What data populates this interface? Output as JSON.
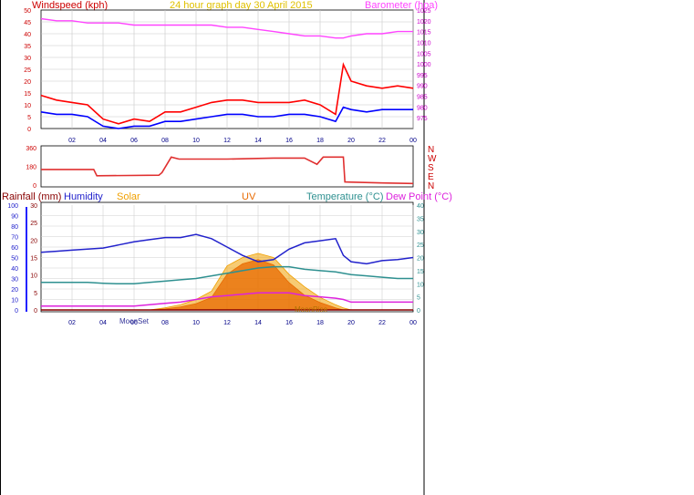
{
  "header": {
    "title": "24 hour graph day  30 April 2015",
    "left_label": "Windspeed (kph)",
    "right_label": "Barometer (hpa)"
  },
  "footer_labels": {
    "moon_set": "MoonSet",
    "moon_rise": "MoonRise"
  },
  "colors": {
    "gust": "#ff0000",
    "avg": "#0000ff",
    "baro": "#ff44ff",
    "dir": "#e03030",
    "humidity": "#2222cc",
    "temperature": "#2e9090",
    "dewpoint": "#dd22dd",
    "solar": "#f0a000",
    "uv": "#e86a00",
    "rainfall": "#880000"
  },
  "chart_data": [
    {
      "type": "line",
      "title": "24 hour graph day  30 April 2015",
      "xlabel": "",
      "x_ticks": [
        "02",
        "04",
        "06",
        "08",
        "10",
        "12",
        "14",
        "16",
        "18",
        "20",
        "22",
        "00"
      ],
      "y_left": {
        "label": "Windspeed (kph)",
        "range": [
          0,
          50
        ],
        "ticks": [
          0,
          5,
          10,
          15,
          20,
          25,
          30,
          35,
          40,
          45,
          50
        ]
      },
      "y_right": {
        "label": "Barometer (hpa)",
        "range": [
          970,
          1025
        ],
        "ticks": [
          975,
          980,
          985,
          990,
          995,
          1000,
          1005,
          1010,
          1015,
          1020,
          1025
        ]
      },
      "grid": true,
      "x_hours": [
        0,
        1,
        2,
        3,
        4,
        5,
        6,
        7,
        8,
        9,
        10,
        11,
        12,
        13,
        14,
        15,
        16,
        17,
        18,
        19,
        19.5,
        20,
        21,
        22,
        23,
        24
      ],
      "series": [
        {
          "name": "",
          "axis": "left",
          "color_key": "gust",
          "values": [
            14,
            12,
            11,
            10,
            4,
            2,
            4,
            3,
            7,
            7,
            9,
            11,
            12,
            12,
            11,
            11,
            11,
            12,
            10,
            6,
            27,
            20,
            18,
            17,
            18,
            17
          ]
        },
        {
          "name": "",
          "axis": "left",
          "color_key": "avg",
          "values": [
            7,
            6,
            6,
            5,
            1,
            0,
            1,
            1,
            3,
            3,
            4,
            5,
            6,
            6,
            5,
            5,
            6,
            6,
            5,
            3,
            9,
            8,
            7,
            8,
            8,
            8
          ]
        },
        {
          "name": "",
          "axis": "right",
          "color_key": "baro",
          "values": [
            1021,
            1020,
            1020,
            1019,
            1019,
            1019,
            1018,
            1018,
            1018,
            1018,
            1018,
            1018,
            1017,
            1017,
            1016,
            1015,
            1014,
            1013,
            1013,
            1012,
            1012,
            1013,
            1014,
            1014,
            1015,
            1015
          ]
        }
      ]
    },
    {
      "type": "line",
      "title": "",
      "x_ticks": [],
      "y_left": {
        "label": "",
        "range": [
          0,
          360
        ],
        "ticks": [
          0,
          180,
          360
        ]
      },
      "y_right_labels": [
        "N",
        "W",
        "S",
        "E",
        "N"
      ],
      "grid": false,
      "x_hours": [
        0,
        3.4,
        3.6,
        7.6,
        7.8,
        8.4,
        8.9,
        12,
        15,
        17,
        17.8,
        18.2,
        19,
        19.5,
        19.6,
        22,
        24
      ],
      "series": [
        {
          "name": "",
          "color_key": "dir",
          "values": [
            150,
            150,
            90,
            95,
            120,
            270,
            250,
            250,
            260,
            260,
            200,
            270,
            270,
            270,
            30,
            20,
            15
          ]
        }
      ]
    },
    {
      "type": "line",
      "title": "",
      "x_ticks": [
        "02",
        "04",
        "06",
        "08",
        "10",
        "12",
        "14",
        "16",
        "18",
        "20",
        "22",
        "00"
      ],
      "labels": {
        "rainfall": "Rainfall (mm)",
        "humidity": "Humidity",
        "solar": "Solar",
        "uv": "UV",
        "temperature": "Temperature (°C)",
        "dewpoint": "Dew Point (°C)"
      },
      "y_humidity": {
        "range": [
          0,
          100
        ],
        "ticks": [
          0,
          10,
          20,
          30,
          40,
          50,
          60,
          70,
          80,
          90,
          100
        ]
      },
      "y_rain": {
        "range": [
          0,
          30
        ],
        "ticks": [
          0,
          5,
          10,
          15,
          20,
          25,
          30
        ]
      },
      "y_temp": {
        "range": [
          0,
          40
        ],
        "ticks": [
          0,
          5,
          10,
          15,
          20,
          25,
          30,
          35,
          40
        ]
      },
      "grid": true,
      "x_hours": [
        0,
        1,
        2,
        3,
        4,
        5,
        6,
        7,
        8,
        9,
        10,
        11,
        12,
        13,
        14,
        15,
        16,
        17,
        18,
        19,
        19.5,
        20,
        21,
        22,
        23,
        24
      ],
      "series": [
        {
          "name": "Humidity",
          "axis": "humidity",
          "color_key": "humidity",
          "values": [
            55,
            56,
            57,
            58,
            59,
            62,
            65,
            67,
            69,
            69,
            72,
            68,
            60,
            52,
            46,
            48,
            58,
            64,
            66,
            68,
            52,
            46,
            44,
            47,
            48,
            50
          ]
        },
        {
          "name": "Temperature (°C)",
          "axis": "temp",
          "color_key": "temperature",
          "values": [
            10.5,
            10.5,
            10.5,
            10.5,
            10.2,
            10.0,
            10.0,
            10.5,
            11,
            11.5,
            12,
            13,
            14,
            15,
            16,
            16.5,
            16.5,
            15.5,
            15,
            14.5,
            14,
            13.5,
            13,
            12.5,
            12,
            12
          ]
        },
        {
          "name": "Dew Point (°C)",
          "axis": "temp",
          "color_key": "dewpoint",
          "values": [
            1.5,
            1.5,
            1.5,
            1.5,
            1.5,
            1.5,
            1.5,
            2,
            2.5,
            3,
            4,
            5,
            5.5,
            6,
            6.5,
            6.5,
            6.5,
            5.5,
            5,
            4.5,
            4,
            3,
            3,
            3,
            3,
            3
          ]
        },
        {
          "name": "Solar",
          "axis": "humidity",
          "color_key": "solar",
          "values": [
            0,
            0,
            0,
            0,
            0,
            0,
            0,
            0,
            2,
            5,
            10,
            18,
            42,
            50,
            54,
            50,
            34,
            22,
            12,
            5,
            2,
            0,
            0,
            0,
            0,
            0
          ]
        },
        {
          "name": "UV",
          "axis": "humidity",
          "color_key": "uv",
          "values": [
            0,
            0,
            0,
            0,
            0,
            0,
            0,
            0,
            1,
            3,
            6,
            12,
            34,
            44,
            48,
            43,
            26,
            14,
            7,
            2,
            0,
            0,
            0,
            0,
            0,
            0
          ]
        },
        {
          "name": "Rainfall (mm)",
          "axis": "rain",
          "color_key": "rainfall",
          "values": [
            0,
            0,
            0,
            0,
            0,
            0,
            0,
            0,
            0,
            0,
            0,
            0,
            0,
            0,
            0,
            0,
            0,
            0,
            0,
            0,
            0,
            0,
            0,
            0,
            0,
            0
          ]
        }
      ]
    }
  ]
}
